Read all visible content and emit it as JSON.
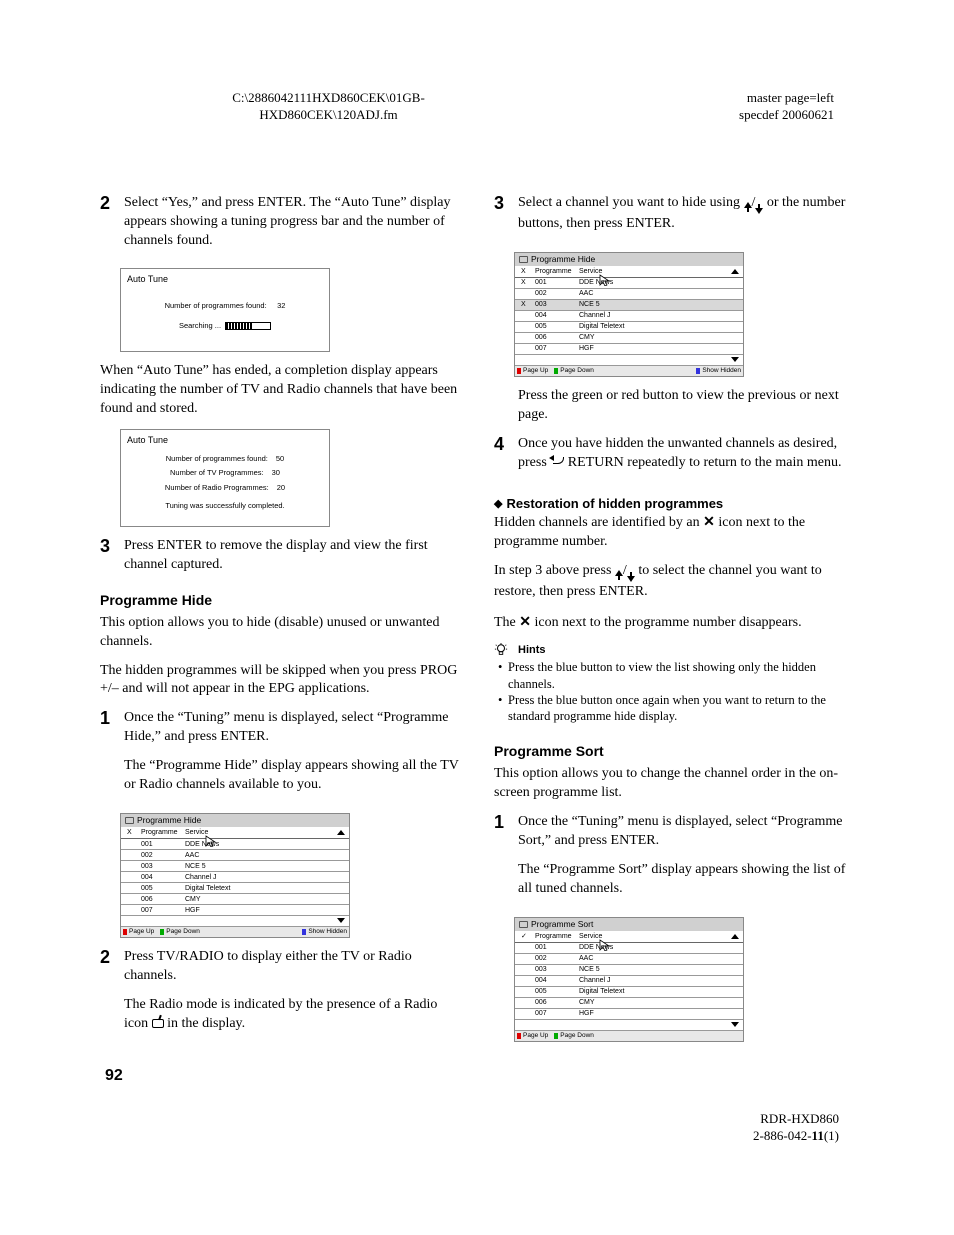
{
  "header": {
    "left_line1": "C:\\2886042111HXD860CEK\\01GB-",
    "left_line2": "HXD860CEK\\120ADJ.fm",
    "right_line1": "master page=left",
    "right_line2": "specdef 20060621"
  },
  "left": {
    "step2": {
      "n": "2",
      "text": "Select “Yes,” and press ENTER. The “Auto Tune” display appears showing a tuning progress bar and the number of channels found."
    },
    "auto1": {
      "title": "Auto Tune",
      "label": "Number of programmes found:",
      "count": "32",
      "searching": "Searching ..."
    },
    "after_auto1": "When “Auto Tune” has ended, a completion display appears indicating the number of TV and Radio channels that have been found and stored.",
    "auto2": {
      "title": "Auto Tune",
      "l1": "Number of programmes found:",
      "v1": "50",
      "l2": "Number of TV Programmes:",
      "v2": "30",
      "l3": "Number of Radio Programmes:",
      "v3": "20",
      "done": "Tuning was successfully completed."
    },
    "step3": {
      "n": "3",
      "text": "Press ENTER to remove the display and view the first channel captured."
    },
    "progHide": {
      "title": "Programme Hide",
      "p1": "This option allows you to hide (disable) unused or unwanted channels.",
      "p2": "The hidden programmes will be skipped when you press PROG +/– and will not appear in the EPG applications."
    },
    "ph_step1": {
      "n": "1",
      "t1": "Once the “Tuning” menu is displayed, select “Programme Hide,” and press ENTER.",
      "t2": "The “Programme Hide” display appears showing all the TV or Radio channels available to you."
    },
    "ph_table": {
      "title": "Programme Hide",
      "head_x": "X",
      "head_prog": "Programme",
      "head_serv": "Service",
      "rows": [
        {
          "x": "",
          "p": "001",
          "s": "DDE News"
        },
        {
          "x": "",
          "p": "002",
          "s": "AAC"
        },
        {
          "x": "",
          "p": "003",
          "s": "NCE 5"
        },
        {
          "x": "",
          "p": "004",
          "s": "Channel J"
        },
        {
          "x": "",
          "p": "005",
          "s": "Digital Teletext"
        },
        {
          "x": "",
          "p": "006",
          "s": "CMY"
        },
        {
          "x": "",
          "p": "007",
          "s": "HGF"
        }
      ],
      "foot_up": "Page Up",
      "foot_down": "Page Down",
      "foot_hidden": "Show Hidden"
    },
    "ph_step2": {
      "n": "2",
      "t1": "Press TV/RADIO to display either the TV or Radio channels.",
      "t2a": "The Radio mode is indicated by the presence of a Radio icon ",
      "t2b": " in the display."
    }
  },
  "right": {
    "step3": {
      "n": "3",
      "t1": "Select a channel you want to hide using ",
      "t2": " or the number buttons, then press ENTER."
    },
    "ph_table2": {
      "title": "Programme Hide",
      "head_x": "X",
      "head_prog": "Programme",
      "head_serv": "Service",
      "rows": [
        {
          "x": "X",
          "p": "001",
          "s": "DDE News"
        },
        {
          "x": "",
          "p": "002",
          "s": "AAC"
        },
        {
          "x": "X",
          "p": "003",
          "s": "NCE 5",
          "sel": true
        },
        {
          "x": "",
          "p": "004",
          "s": "Channel J"
        },
        {
          "x": "",
          "p": "005",
          "s": "Digital Teletext"
        },
        {
          "x": "",
          "p": "006",
          "s": "CMY"
        },
        {
          "x": "",
          "p": "007",
          "s": "HGF"
        }
      ],
      "foot_up": "Page Up",
      "foot_down": "Page Down",
      "foot_hidden": "Show Hidden"
    },
    "after_t2": "Press the green or red button to view the previous or next page.",
    "step4": {
      "n": "4",
      "t1": "Once you have hidden the unwanted channels as desired, press ",
      "t2": " RETURN repeatedly to return to the main menu."
    },
    "restore": {
      "title": "Restoration of hidden programmes",
      "p1a": "Hidden channels are identified by an ",
      "p1b": " icon next to the programme number.",
      "p2a": "In step 3 above press ",
      "p2b": " to select the channel you want to restore, then press ENTER.",
      "p3a": "The ",
      "p3b": " icon next to the programme number disappears."
    },
    "hints": {
      "title": "Hints",
      "h1": "Press the blue button to view the list showing only the hidden channels.",
      "h2": "Press the blue button once again when you want to return to the standard programme hide display."
    },
    "progSort": {
      "title": "Programme Sort",
      "p1": "This option allows you to change the channel order in the on-screen programme list."
    },
    "ps_step1": {
      "n": "1",
      "t1": "Once the “Tuning” menu is displayed, select “Programme Sort,” and press ENTER.",
      "t2": "The “Programme Sort” display appears showing the list of all tuned channels."
    },
    "ps_table": {
      "title": "Programme Sort",
      "head_check": "✓",
      "head_prog": "Programme",
      "head_serv": "Service",
      "rows": [
        {
          "p": "001",
          "s": "DDE News"
        },
        {
          "p": "002",
          "s": "AAC"
        },
        {
          "p": "003",
          "s": "NCE 5"
        },
        {
          "p": "004",
          "s": "Channel J"
        },
        {
          "p": "005",
          "s": "Digital Teletext"
        },
        {
          "p": "006",
          "s": "CMY"
        },
        {
          "p": "007",
          "s": "HGF"
        }
      ],
      "foot_up": "Page Up",
      "foot_down": "Page Down"
    }
  },
  "pageNum": "92",
  "footer": {
    "l1": "RDR-HXD860",
    "l2a": "2-886-042-",
    "l2b": "11",
    "l2c": "(1)"
  },
  "colors": {
    "text": "#000000",
    "bg": "#ffffff",
    "border": "#888888",
    "tbar": "#d0d0d0",
    "sel": "#d8d8d8"
  }
}
